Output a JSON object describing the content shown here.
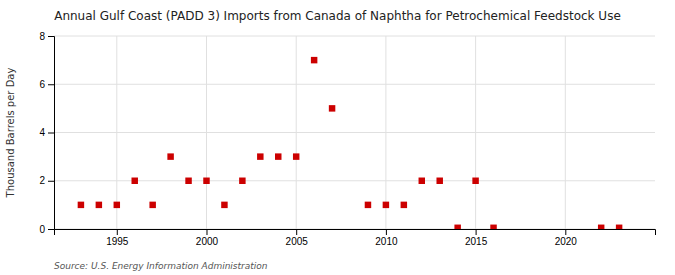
{
  "chart_data": {
    "type": "scatter",
    "title": "Annual Gulf Coast (PADD 3) Imports from Canada of Naphtha for Petrochemical Feedstock Use",
    "ylabel": "Thousand Barrels per Day",
    "annotations": [
      "Source: U.S. Energy Information Administration"
    ],
    "x": [
      1993,
      1994,
      1995,
      1996,
      1997,
      1998,
      1999,
      2000,
      2001,
      2002,
      2003,
      2004,
      2005,
      2006,
      2007,
      2009,
      2010,
      2011,
      2012,
      2013,
      2014,
      2015,
      2016,
      2022,
      2023
    ],
    "values": [
      1,
      1,
      1,
      2,
      1,
      3,
      2,
      2,
      1,
      2,
      3,
      3,
      3,
      7,
      5,
      1,
      1,
      1,
      2,
      2,
      0.05,
      2,
      0.05,
      0.05,
      0.05
    ],
    "color": "#cc0000",
    "marker": "square",
    "xlim": [
      1991.5,
      2025
    ],
    "ylim": [
      0,
      8
    ],
    "xticks": [
      1995,
      2000,
      2005,
      2010,
      2015,
      2020
    ],
    "yticks": [
      0,
      2,
      4,
      6,
      8
    ],
    "grid": true
  }
}
